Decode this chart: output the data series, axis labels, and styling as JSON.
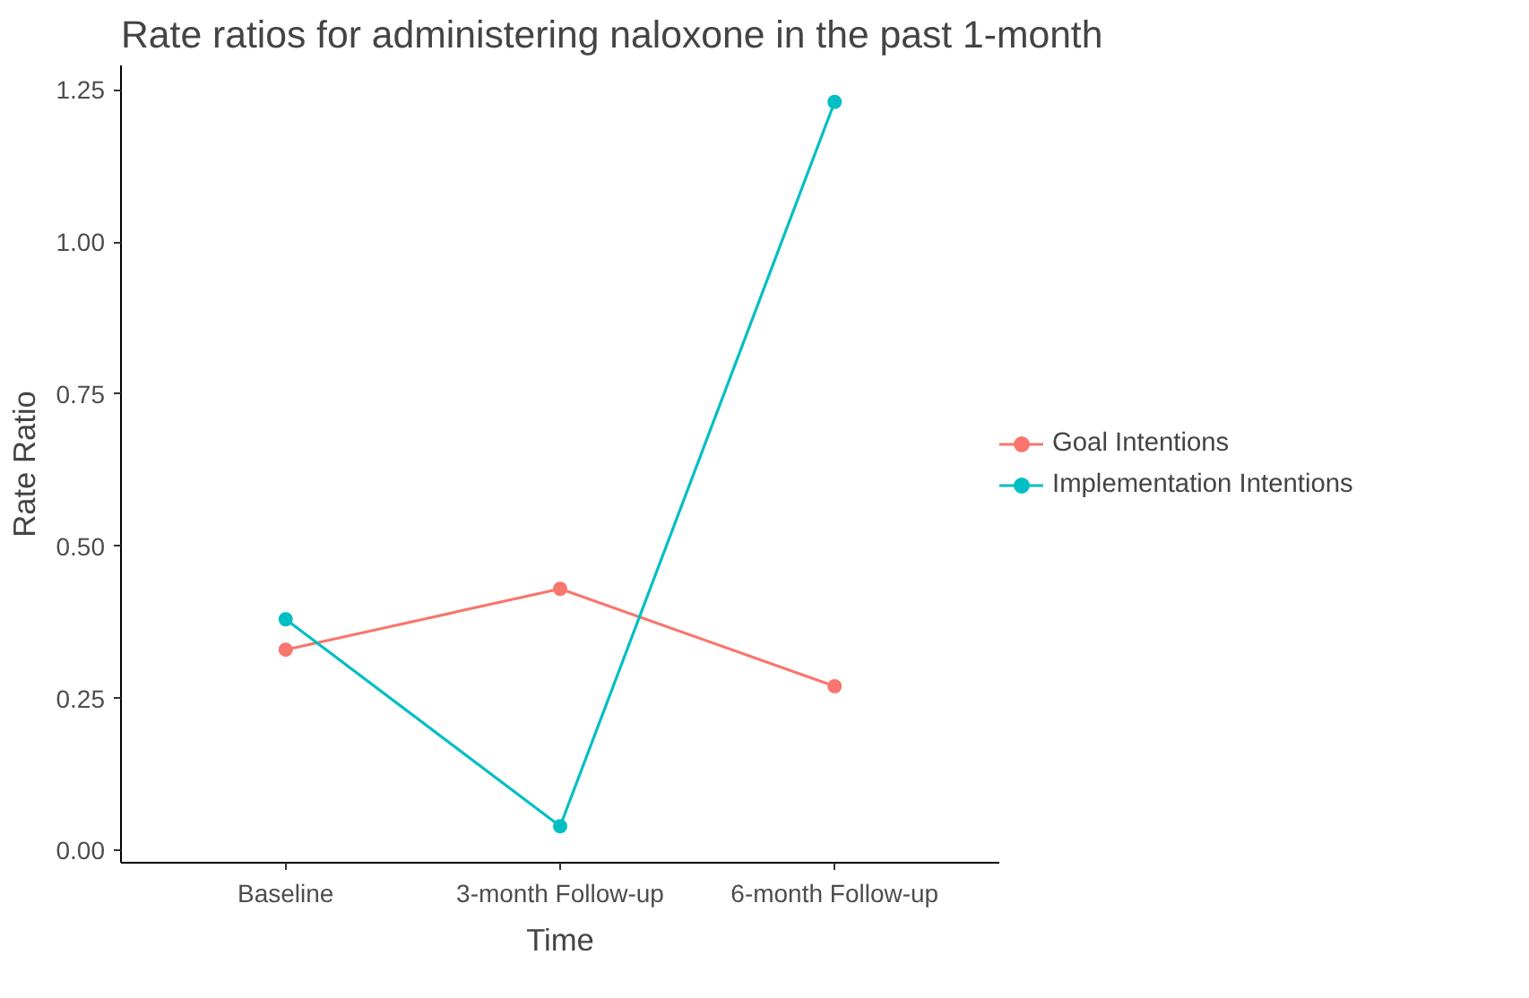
{
  "chart_data": {
    "type": "line",
    "title": "Rate ratios for administering naloxone in the past 1-month",
    "xlabel": "Time",
    "ylabel": "Rate Ratio",
    "categories": [
      "Baseline",
      "3-month Follow-up",
      "6-month Follow-up"
    ],
    "series": [
      {
        "name": "Goal Intentions",
        "color": "#f8766d",
        "values": [
          0.33,
          0.43,
          0.27
        ]
      },
      {
        "name": "Implementation Intentions",
        "color": "#00bfc4",
        "values": [
          0.38,
          0.04,
          1.23
        ]
      }
    ],
    "ylim": [
      -0.02,
      1.29
    ],
    "yticks": [
      {
        "value": 0,
        "label": "0.00"
      },
      {
        "value": 0.25,
        "label": "0.25"
      },
      {
        "value": 0.5,
        "label": "0.50"
      },
      {
        "value": 0.75,
        "label": "0.75"
      },
      {
        "value": 1,
        "label": "1.00"
      },
      {
        "value": 1.25,
        "label": "1.25"
      }
    ],
    "grid": false,
    "legend": "right",
    "marker": "circle",
    "line_style": "solid"
  }
}
